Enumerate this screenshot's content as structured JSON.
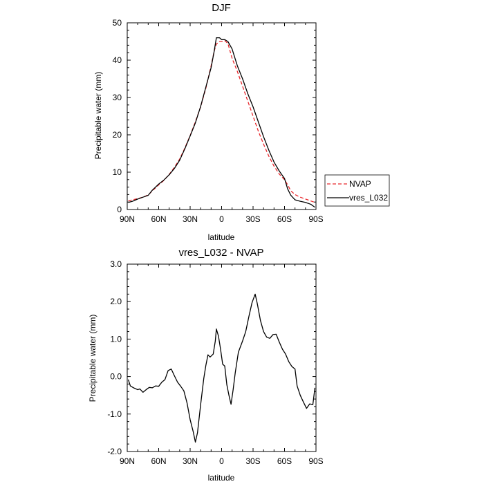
{
  "chart_data": [
    {
      "type": "line",
      "title": "DJF",
      "xlabel": "latitude",
      "ylabel": "Precipitable water (mm)",
      "xlim": [
        90,
        -90
      ],
      "ylim": [
        0,
        50
      ],
      "x_ticks": [
        90,
        60,
        30,
        0,
        -30,
        -60,
        -90
      ],
      "x_tick_labels": [
        "90N",
        "60N",
        "30N",
        "0",
        "30S",
        "60S",
        "90S"
      ],
      "y_ticks": [
        0,
        10,
        20,
        30,
        40,
        50
      ],
      "y_tick_labels": [
        "0",
        "10",
        "20",
        "30",
        "40",
        "50"
      ],
      "grid": false,
      "legend_position": "right",
      "series": [
        {
          "name": "NVAP",
          "color": "#e8262a",
          "dash": "dashed",
          "points": [
            [
              89,
              2.3
            ],
            [
              85,
              2.6
            ],
            [
              80,
              2.9
            ],
            [
              75,
              3.3
            ],
            [
              70,
              3.9
            ],
            [
              66,
              5.0
            ],
            [
              60,
              6.6
            ],
            [
              55,
              7.8
            ],
            [
              50,
              9.4
            ],
            [
              45,
              11.3
            ],
            [
              40,
              13.5
            ],
            [
              35,
              16.5
            ],
            [
              30,
              19.8
            ],
            [
              25,
              23.5
            ],
            [
              20,
              27.5
            ],
            [
              15,
              32.5
            ],
            [
              10,
              38.5
            ],
            [
              7,
              42.5
            ],
            [
              5,
              44.3
            ],
            [
              2,
              45.0
            ],
            [
              0,
              45.0
            ],
            [
              -3,
              45.2
            ],
            [
              -6,
              44.5
            ],
            [
              -8,
              42.5
            ],
            [
              -10,
              40.5
            ],
            [
              -15,
              37.0
            ],
            [
              -20,
              33.0
            ],
            [
              -25,
              29.0
            ],
            [
              -30,
              25.0
            ],
            [
              -35,
              21.0
            ],
            [
              -40,
              17.5
            ],
            [
              -45,
              14.3
            ],
            [
              -50,
              11.6
            ],
            [
              -55,
              9.5
            ],
            [
              -60,
              8.0
            ],
            [
              -63,
              6.6
            ],
            [
              -66,
              5.0
            ],
            [
              -70,
              4.0
            ],
            [
              -75,
              3.3
            ],
            [
              -80,
              2.8
            ],
            [
              -85,
              2.3
            ],
            [
              -89,
              1.9
            ]
          ]
        },
        {
          "name": "vres_L032",
          "color": "#000000",
          "dash": "solid",
          "points": [
            [
              89,
              1.9
            ],
            [
              85,
              2.2
            ],
            [
              80,
              2.8
            ],
            [
              75,
              3.3
            ],
            [
              70,
              3.8
            ],
            [
              66,
              5.2
            ],
            [
              60,
              6.8
            ],
            [
              55,
              7.9
            ],
            [
              50,
              9.3
            ],
            [
              45,
              11.0
            ],
            [
              40,
              13.2
            ],
            [
              35,
              16.3
            ],
            [
              30,
              19.7
            ],
            [
              25,
              23.2
            ],
            [
              20,
              27.6
            ],
            [
              15,
              32.8
            ],
            [
              10,
              38.0
            ],
            [
              7,
              42.5
            ],
            [
              5,
              46.0
            ],
            [
              2,
              46.0
            ],
            [
              0,
              45.5
            ],
            [
              -3,
              45.5
            ],
            [
              -6,
              45.0
            ],
            [
              -10,
              43.0
            ],
            [
              -15,
              38.5
            ],
            [
              -20,
              35.0
            ],
            [
              -25,
              31.0
            ],
            [
              -30,
              27.5
            ],
            [
              -35,
              23.5
            ],
            [
              -40,
              19.5
            ],
            [
              -45,
              15.9
            ],
            [
              -50,
              12.7
            ],
            [
              -55,
              10.3
            ],
            [
              -60,
              8.3
            ],
            [
              -63,
              5.5
            ],
            [
              -66,
              3.8
            ],
            [
              -70,
              2.6
            ],
            [
              -75,
              2.2
            ],
            [
              -80,
              1.9
            ],
            [
              -85,
              1.4
            ],
            [
              -89,
              0.6
            ]
          ]
        }
      ]
    },
    {
      "type": "line",
      "title": "vres_L032 - NVAP",
      "xlabel": "latitude",
      "ylabel": "Precipitable water (mm)",
      "xlim": [
        90,
        -90
      ],
      "ylim": [
        -2.0,
        3.0
      ],
      "x_ticks": [
        90,
        60,
        30,
        0,
        -30,
        -60,
        -90
      ],
      "x_tick_labels": [
        "90N",
        "60N",
        "30N",
        "0",
        "30S",
        "60S",
        "90S"
      ],
      "y_ticks": [
        -2.0,
        -1.0,
        0.0,
        1.0,
        2.0,
        3.0
      ],
      "y_tick_labels": [
        "-2.0",
        "-1.0",
        "0.0",
        "1.0",
        "2.0",
        "3.0"
      ],
      "grid": false,
      "series": [
        {
          "color": "#000000",
          "dash": "solid",
          "points": [
            [
              89,
              -0.08
            ],
            [
              87,
              -0.25
            ],
            [
              84,
              -0.3
            ],
            [
              80,
              -0.35
            ],
            [
              78,
              -0.33
            ],
            [
              75,
              -0.42
            ],
            [
              72,
              -0.35
            ],
            [
              69,
              -0.29
            ],
            [
              66,
              -0.3
            ],
            [
              63,
              -0.25
            ],
            [
              60,
              -0.26
            ],
            [
              57,
              -0.15
            ],
            [
              54,
              -0.08
            ],
            [
              51,
              0.16
            ],
            [
              48,
              0.2
            ],
            [
              45,
              0.02
            ],
            [
              42,
              -0.15
            ],
            [
              39,
              -0.26
            ],
            [
              36,
              -0.38
            ],
            [
              33,
              -0.7
            ],
            [
              30,
              -1.15
            ],
            [
              27,
              -1.48
            ],
            [
              25,
              -1.75
            ],
            [
              23,
              -1.5
            ],
            [
              20,
              -0.75
            ],
            [
              17,
              -0.05
            ],
            [
              15,
              0.3
            ],
            [
              13,
              0.58
            ],
            [
              11,
              0.52
            ],
            [
              8,
              0.6
            ],
            [
              6,
              0.95
            ],
            [
              5,
              1.27
            ],
            [
              3,
              1.08
            ],
            [
              1,
              0.73
            ],
            [
              -1,
              0.33
            ],
            [
              -3,
              0.28
            ],
            [
              -5,
              -0.22
            ],
            [
              -7,
              -0.5
            ],
            [
              -9,
              -0.74
            ],
            [
              -11,
              -0.35
            ],
            [
              -13,
              0.1
            ],
            [
              -16,
              0.65
            ],
            [
              -20,
              0.95
            ],
            [
              -23,
              1.2
            ],
            [
              -26,
              1.6
            ],
            [
              -29,
              1.97
            ],
            [
              -32,
              2.2
            ],
            [
              -34,
              1.95
            ],
            [
              -37,
              1.5
            ],
            [
              -40,
              1.2
            ],
            [
              -43,
              1.05
            ],
            [
              -46,
              1.02
            ],
            [
              -49,
              1.12
            ],
            [
              -52,
              1.13
            ],
            [
              -55,
              0.92
            ],
            [
              -58,
              0.73
            ],
            [
              -61,
              0.6
            ],
            [
              -64,
              0.4
            ],
            [
              -67,
              0.27
            ],
            [
              -70,
              0.2
            ],
            [
              -72,
              -0.25
            ],
            [
              -75,
              -0.5
            ],
            [
              -78,
              -0.68
            ],
            [
              -81,
              -0.85
            ],
            [
              -84,
              -0.73
            ],
            [
              -87,
              -0.75
            ],
            [
              -89,
              -0.3
            ]
          ]
        }
      ]
    }
  ]
}
